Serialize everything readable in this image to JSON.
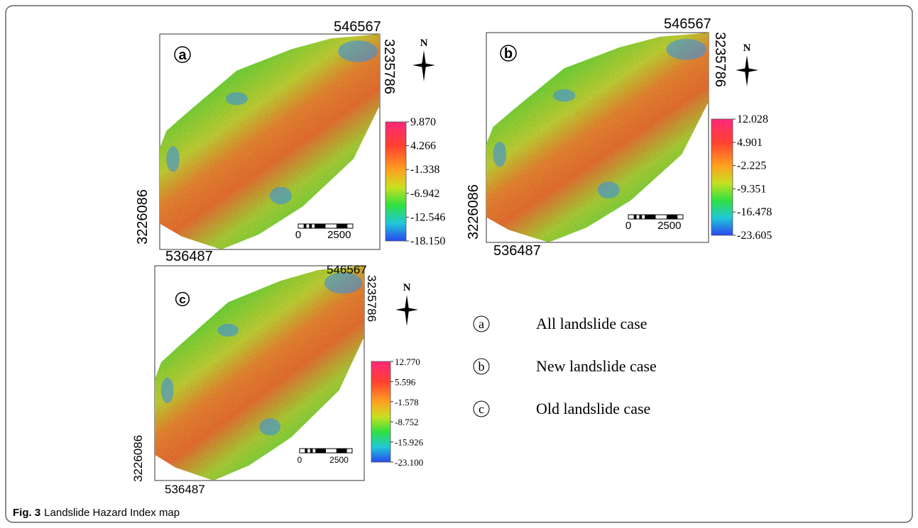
{
  "panels": [
    {
      "label": "a",
      "top_easting": "546567",
      "right_northing": "3235786",
      "left_northing": "3226086",
      "bottom_easting": "536487",
      "north": "N",
      "colorbar_ticks": [
        "9.870",
        "4.266",
        "-1.338",
        "-6.942",
        "-12.546",
        "-18.150"
      ],
      "scale_bar": [
        "0",
        "2500"
      ]
    },
    {
      "label": "b",
      "top_easting": "546567",
      "right_northing": "3235786",
      "left_northing": "3226086",
      "bottom_easting": "536487",
      "north": "N",
      "colorbar_ticks": [
        "12.028",
        "4.901",
        "-2.225",
        "-9.351",
        "-16.478",
        "-23.605"
      ],
      "scale_bar": [
        "0",
        "2500"
      ]
    },
    {
      "label": "c",
      "top_easting": "546567",
      "right_northing": "3235786",
      "left_northing": "3226086",
      "bottom_easting": "536487",
      "north": "N",
      "colorbar_ticks": [
        "12.770",
        "5.596",
        "-1.578",
        "-8.752",
        "-15.926",
        "-23.100"
      ],
      "scale_bar": [
        "0",
        "2500"
      ]
    }
  ],
  "legend": [
    {
      "symbol": "a",
      "text": "All landslide case"
    },
    {
      "symbol": "b",
      "text": "New landslide case"
    },
    {
      "symbol": "c",
      "text": "Old landslide case"
    }
  ],
  "caption": {
    "label": "Fig. 3",
    "text": "Landslide Hazard Index map"
  }
}
